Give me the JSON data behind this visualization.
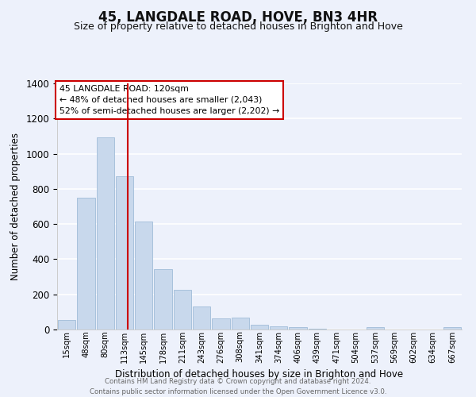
{
  "title": "45, LANGDALE ROAD, HOVE, BN3 4HR",
  "subtitle": "Size of property relative to detached houses in Brighton and Hove",
  "xlabel": "Distribution of detached houses by size in Brighton and Hove",
  "ylabel": "Number of detached properties",
  "bar_labels": [
    "15sqm",
    "48sqm",
    "80sqm",
    "113sqm",
    "145sqm",
    "178sqm",
    "211sqm",
    "243sqm",
    "276sqm",
    "308sqm",
    "341sqm",
    "374sqm",
    "406sqm",
    "439sqm",
    "471sqm",
    "504sqm",
    "537sqm",
    "569sqm",
    "602sqm",
    "634sqm",
    "667sqm"
  ],
  "bar_values": [
    55,
    750,
    1095,
    870,
    615,
    345,
    228,
    130,
    65,
    70,
    25,
    18,
    15,
    5,
    0,
    0,
    12,
    0,
    0,
    0,
    12
  ],
  "bar_color": "#c8d8ec",
  "bar_edge_color": "#a0bcd8",
  "vline_color": "#cc0000",
  "vline_x": 3.15,
  "ylim": [
    0,
    1400
  ],
  "yticks": [
    0,
    200,
    400,
    600,
    800,
    1000,
    1200,
    1400
  ],
  "annotation_title": "45 LANGDALE ROAD: 120sqm",
  "annotation_line1": "← 48% of detached houses are smaller (2,043)",
  "annotation_line2": "52% of semi-detached houses are larger (2,202) →",
  "annotation_box_color": "#ffffff",
  "annotation_box_edge": "#cc0000",
  "footer_line1": "Contains HM Land Registry data © Crown copyright and database right 2024.",
  "footer_line2": "Contains public sector information licensed under the Open Government Licence v3.0.",
  "background_color": "#edf1fb",
  "grid_color": "#ffffff",
  "title_fontsize": 12,
  "subtitle_fontsize": 9
}
